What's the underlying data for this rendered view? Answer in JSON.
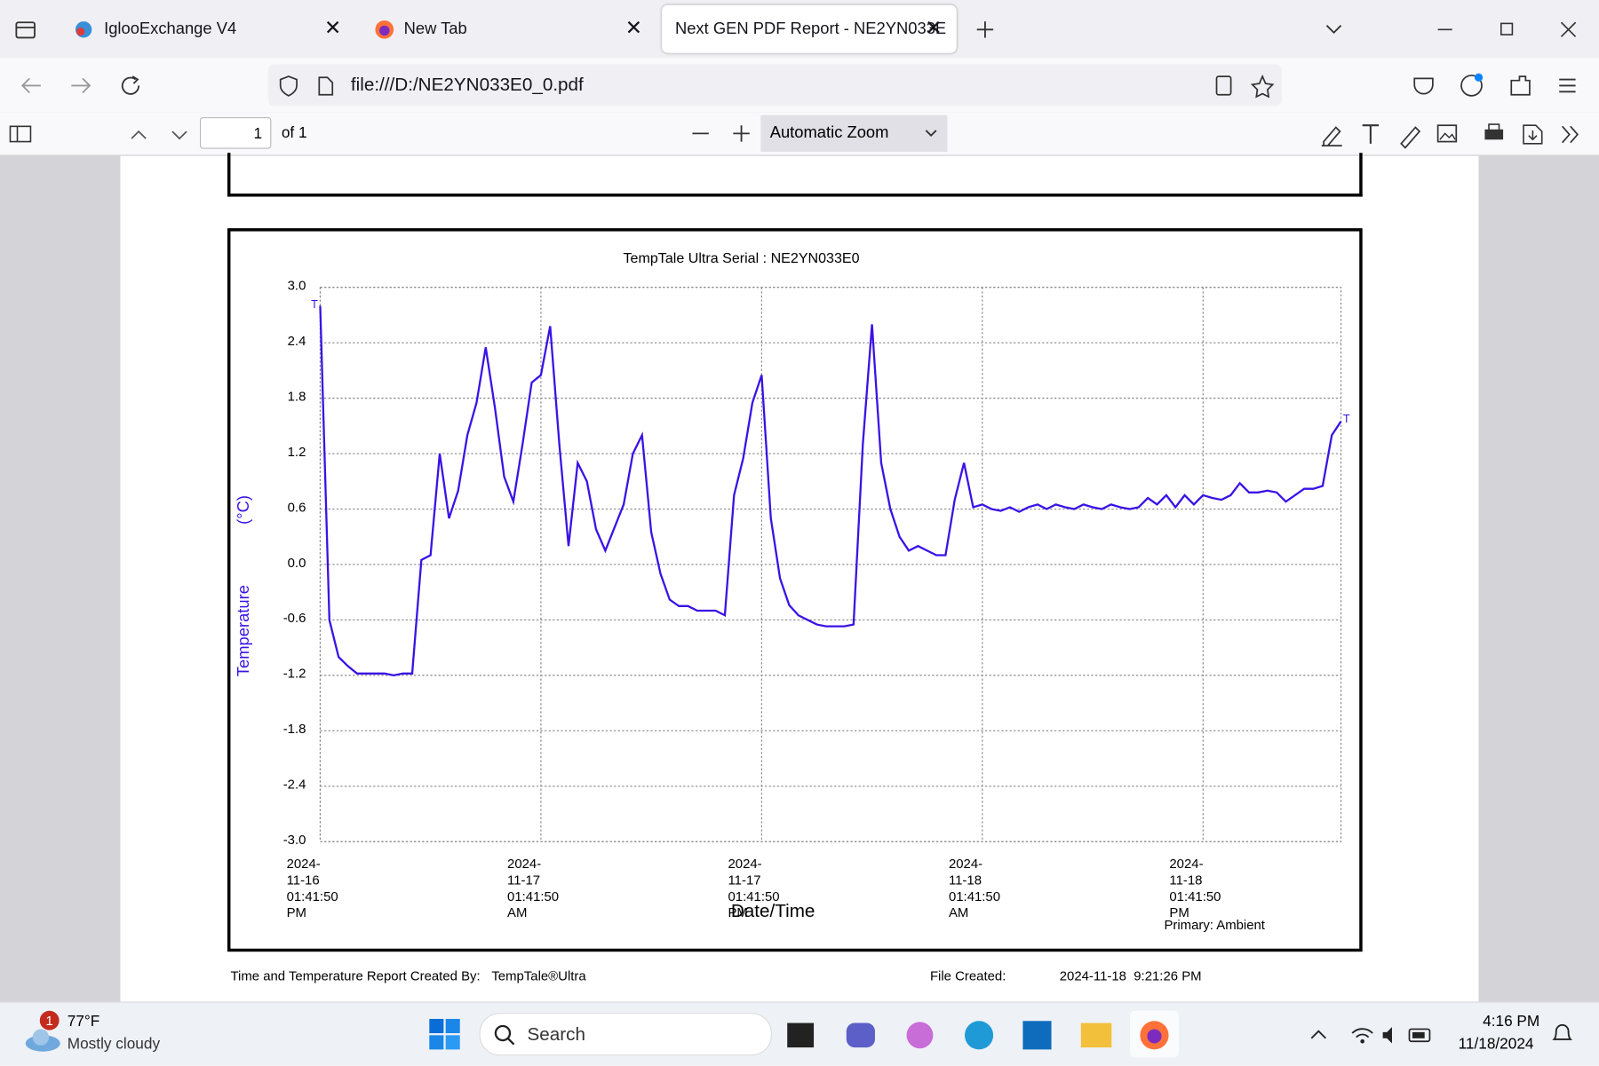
{
  "browser": {
    "tabs": [
      {
        "title": "IglooExchange V4"
      },
      {
        "title": "New Tab"
      },
      {
        "title": "Next GEN PDF Report - NE2YN033E"
      }
    ],
    "url": "file:///D:/NE2YN033E0_0.pdf"
  },
  "pdf_toolbar": {
    "page": "1",
    "page_count": "of 1",
    "zoom": "Automatic Zoom"
  },
  "chart_data": {
    "type": "line",
    "title": "TempTale Ultra  Serial : NE2YN033E0",
    "ylabel": "Temperature (°C)",
    "xlabel": "Date/Time",
    "note": "Primary: Ambient",
    "annotations": [
      "T",
      "T"
    ],
    "ylim": [
      -3,
      3
    ],
    "yticks": [
      {
        "value": -3,
        "label": "-3.0"
      },
      -2.4,
      -1.8,
      -1.2,
      -0.6,
      {
        "value": 0,
        "label": "0.0"
      },
      0.6,
      1.2,
      1.8,
      2.4,
      {
        "value": 3,
        "label": "3.0"
      }
    ],
    "xlim": [
      "2024-11-16T13:41:50",
      "2024-11-18T21:11:50"
    ],
    "xticks": [
      {
        "value": "2024-11-16T13:41:50",
        "label": "2024-11-16\n01:41:50 PM"
      },
      {
        "value": "2024-11-17T01:41:50",
        "label": "2024-11-17\n01:41:50 AM"
      },
      {
        "value": "2024-11-17T13:41:50",
        "label": "2024-11-17\n01:41:50 PM"
      },
      {
        "value": "2024-11-18T01:41:50",
        "label": "2024-11-18\n01:41:50 AM"
      },
      {
        "value": "2024-11-18T13:41:50",
        "label": "2024-11-18\n01:41:50 PM"
      }
    ],
    "grid": true,
    "x": [
      "2024-11-16T13:41:50",
      "2024-11-16T14:11:50",
      "2024-11-16T14:41:50",
      "2024-11-16T15:11:50",
      "2024-11-16T15:41:50",
      "2024-11-16T16:11:50",
      "2024-11-16T16:41:50",
      "2024-11-16T17:11:50",
      "2024-11-16T17:41:50",
      "2024-11-16T18:11:50",
      "2024-11-16T18:41:50",
      "2024-11-16T19:11:50",
      "2024-11-16T19:41:50",
      "2024-11-16T20:11:50",
      "2024-11-16T20:41:50",
      "2024-11-16T21:11:50",
      "2024-11-16T21:41:50",
      "2024-11-16T22:11:50",
      "2024-11-16T22:41:50",
      "2024-11-16T23:11:50",
      "2024-11-16T23:41:50",
      "2024-11-17T00:11:50",
      "2024-11-17T00:41:50",
      "2024-11-17T01:11:50",
      "2024-11-17T01:41:50",
      "2024-11-17T02:11:50",
      "2024-11-17T02:41:50",
      "2024-11-17T03:11:50",
      "2024-11-17T03:41:50",
      "2024-11-17T04:11:50",
      "2024-11-17T04:41:50",
      "2024-11-17T05:11:50",
      "2024-11-17T05:41:50",
      "2024-11-17T06:11:50",
      "2024-11-17T06:41:50",
      "2024-11-17T07:11:50",
      "2024-11-17T07:41:50",
      "2024-11-17T08:11:50",
      "2024-11-17T08:41:50",
      "2024-11-17T09:11:50",
      "2024-11-17T09:41:50",
      "2024-11-17T10:11:50",
      "2024-11-17T10:41:50",
      "2024-11-17T11:11:50",
      "2024-11-17T11:41:50",
      "2024-11-17T12:11:50",
      "2024-11-17T12:41:50",
      "2024-11-17T13:11:50",
      "2024-11-17T13:41:50",
      "2024-11-17T14:11:50",
      "2024-11-17T14:41:50",
      "2024-11-17T15:11:50",
      "2024-11-17T15:41:50",
      "2024-11-17T16:11:50",
      "2024-11-17T16:41:50",
      "2024-11-17T17:11:50",
      "2024-11-17T17:41:50",
      "2024-11-17T18:11:50",
      "2024-11-17T18:41:50",
      "2024-11-17T19:11:50",
      "2024-11-17T19:41:50",
      "2024-11-17T20:11:50",
      "2024-11-17T20:41:50",
      "2024-11-17T21:11:50",
      "2024-11-17T21:41:50",
      "2024-11-17T22:11:50",
      "2024-11-17T22:41:50",
      "2024-11-17T23:11:50",
      "2024-11-17T23:41:50",
      "2024-11-18T00:11:50",
      "2024-11-18T00:41:50",
      "2024-11-18T01:11:50",
      "2024-11-18T01:41:50",
      "2024-11-18T02:11:50",
      "2024-11-18T02:41:50",
      "2024-11-18T03:11:50",
      "2024-11-18T03:41:50",
      "2024-11-18T04:11:50",
      "2024-11-18T04:41:50",
      "2024-11-18T05:11:50",
      "2024-11-18T05:41:50",
      "2024-11-18T06:11:50",
      "2024-11-18T06:41:50",
      "2024-11-18T07:11:50",
      "2024-11-18T07:41:50",
      "2024-11-18T08:11:50",
      "2024-11-18T08:41:50",
      "2024-11-18T09:11:50",
      "2024-11-18T09:41:50",
      "2024-11-18T10:11:50",
      "2024-11-18T10:41:50",
      "2024-11-18T11:11:50",
      "2024-11-18T11:41:50",
      "2024-11-18T12:11:50",
      "2024-11-18T12:41:50",
      "2024-11-18T13:11:50",
      "2024-11-18T13:41:50",
      "2024-11-18T14:11:50",
      "2024-11-18T14:41:50",
      "2024-11-18T15:11:50",
      "2024-11-18T15:41:50",
      "2024-11-18T16:11:50",
      "2024-11-18T16:41:50",
      "2024-11-18T17:11:50",
      "2024-11-18T17:41:50",
      "2024-11-18T18:11:50",
      "2024-11-18T18:41:50",
      "2024-11-18T19:11:50",
      "2024-11-18T19:41:50",
      "2024-11-18T20:11:50",
      "2024-11-18T20:41:50",
      "2024-11-18T21:11:50"
    ],
    "series": [
      {
        "color": "#3a12e6",
        "values": [
          2.8,
          -0.6,
          -1.0,
          -1.1,
          -1.18,
          -1.18,
          -1.18,
          -1.18,
          -1.2,
          -1.18,
          -1.18,
          0.05,
          0.1,
          1.2,
          0.5,
          0.8,
          1.4,
          1.75,
          2.35,
          1.7,
          0.95,
          0.68,
          1.3,
          1.97,
          2.05,
          2.58,
          1.3,
          0.2,
          1.1,
          0.9,
          0.38,
          0.15,
          0.4,
          0.65,
          1.2,
          1.4,
          0.35,
          -0.1,
          -0.38,
          -0.45,
          -0.45,
          -0.5,
          -0.5,
          -0.5,
          -0.55,
          0.75,
          1.15,
          1.75,
          2.05,
          0.5,
          -0.15,
          -0.44,
          -0.55,
          -0.6,
          -0.65,
          -0.67,
          -0.67,
          -0.67,
          -0.65,
          1.3,
          2.6,
          1.1,
          0.6,
          0.3,
          0.15,
          0.2,
          0.15,
          0.1,
          0.1,
          0.7,
          1.1,
          0.62,
          0.65,
          0.6,
          0.58,
          0.62,
          0.57,
          0.62,
          0.65,
          0.6,
          0.65,
          0.62,
          0.6,
          0.65,
          0.62,
          0.6,
          0.65,
          0.62,
          0.6,
          0.62,
          0.72,
          0.65,
          0.75,
          0.62,
          0.75,
          0.65,
          0.75,
          0.72,
          0.7,
          0.75,
          0.88,
          0.78,
          0.78,
          0.8,
          0.78,
          0.68,
          0.75,
          0.82,
          0.82,
          0.85,
          1.4,
          1.55
        ]
      }
    ]
  },
  "footer": {
    "created_by_label": "Time and Temperature Report Created By:",
    "created_by": "TempTale®Ultra",
    "file_created_label": "File Created:",
    "file_created": "2024-11-18  9:21:26 PM"
  },
  "taskbar": {
    "weather_badge": "1",
    "temperature": "77°F",
    "weather": "Mostly cloudy",
    "search": "Search",
    "time": "4:16 PM",
    "date": "11/18/2024"
  }
}
